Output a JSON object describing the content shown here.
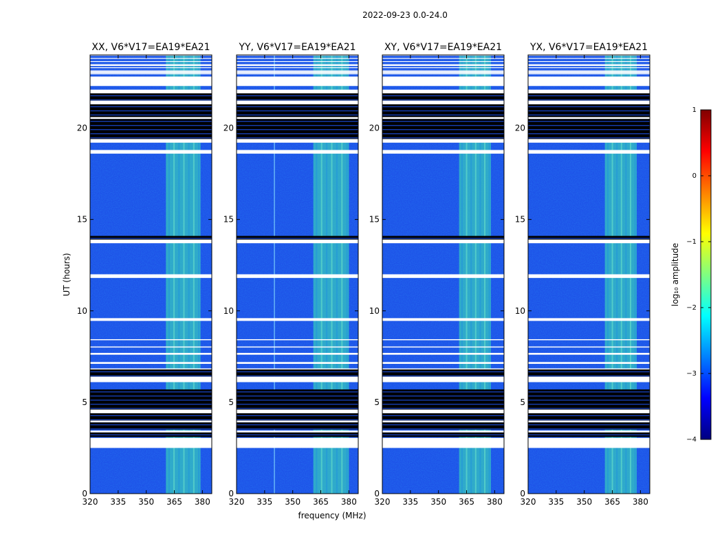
{
  "chart_data": {
    "type": "heatmap",
    "title": "2022-09-23 0.0-24.0",
    "xlabel": "frequency (MHz)",
    "ylabel": "UT (hours)",
    "xlim": [
      320,
      385
    ],
    "ylim": [
      0,
      24
    ],
    "xticks": [
      320,
      335,
      350,
      365,
      380
    ],
    "xtick_labels": [
      "320",
      "335",
      "350",
      "365",
      "380"
    ],
    "yticks": [
      0,
      5,
      10,
      15,
      20
    ],
    "ytick_labels": [
      "0",
      "5",
      "10",
      "15",
      "20"
    ],
    "panels": [
      {
        "title": "XX, V6*V17=EA19*EA21",
        "pol": "XX",
        "bright_band_mhz": [
          360.5,
          379
        ],
        "extra_line_mhz": null
      },
      {
        "title": "YY, V6*V17=EA19*EA21",
        "pol": "YY",
        "bright_band_mhz": [
          361,
          380
        ],
        "extra_line_mhz": 340
      },
      {
        "title": "XY, V6*V17=EA19*EA21",
        "pol": "XY",
        "bright_band_mhz": [
          361,
          378
        ],
        "extra_line_mhz": null
      },
      {
        "title": "YX, V6*V17=EA19*EA21",
        "pol": "YX",
        "bright_band_mhz": [
          361,
          378
        ],
        "extra_line_mhz": null
      }
    ],
    "flagged_ut_ranges": [
      [
        2.5,
        3.05
      ],
      [
        3.35,
        3.45
      ],
      [
        3.9,
        4.0
      ],
      [
        4.4,
        4.6
      ],
      [
        6.1,
        6.4
      ],
      [
        6.8,
        6.85
      ],
      [
        7.1,
        7.2
      ],
      [
        7.6,
        7.7
      ],
      [
        8.0,
        8.05
      ],
      [
        8.4,
        8.45
      ],
      [
        9.45,
        9.6
      ],
      [
        11.8,
        12.0
      ],
      [
        13.7,
        13.9
      ],
      [
        18.6,
        18.8
      ],
      [
        19.2,
        19.4
      ],
      [
        20.5,
        20.6
      ],
      [
        21.3,
        21.5
      ],
      [
        21.9,
        22.1
      ],
      [
        22.3,
        22.8
      ],
      [
        23.0,
        23.1
      ],
      [
        23.4,
        23.45
      ]
    ],
    "dark_ut_ranges": [
      [
        3.1,
        3.35
      ],
      [
        3.5,
        3.9
      ],
      [
        4.0,
        4.4
      ],
      [
        4.6,
        5.7
      ],
      [
        6.4,
        6.8
      ],
      [
        13.9,
        14.1
      ],
      [
        19.4,
        20.5
      ],
      [
        20.6,
        21.3
      ],
      [
        21.5,
        21.9
      ]
    ],
    "colorbar": {
      "label": "log₁₀ amplitude",
      "range": [
        -4,
        1
      ],
      "ticks": [
        -4,
        -3,
        -2,
        -1,
        0,
        1
      ],
      "tick_labels": [
        "−4",
        "−3",
        "−2",
        "−1",
        "0",
        "1"
      ],
      "colormap": [
        "#000080",
        "#0000ff",
        "#0080ff",
        "#00ffff",
        "#80ff80",
        "#ffff00",
        "#ff8000",
        "#ff0000",
        "#800000"
      ]
    },
    "colors": {
      "background_level": "#1e52e8",
      "band_level": "#35c6c0",
      "flagged": "#ffffff",
      "dark": "#000000"
    }
  }
}
